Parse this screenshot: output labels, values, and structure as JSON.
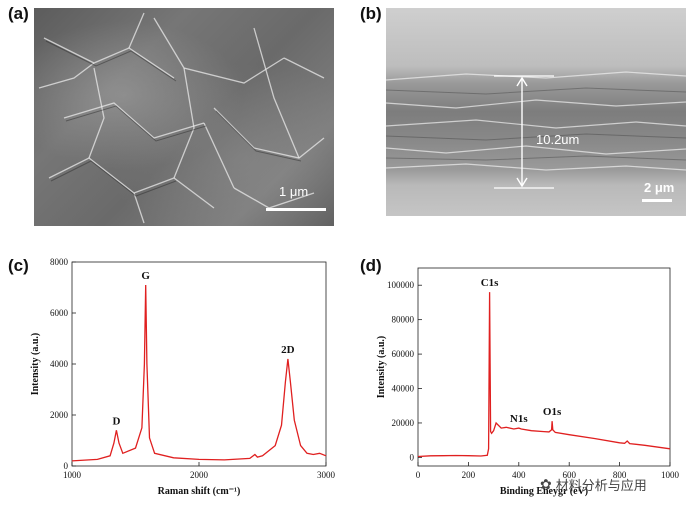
{
  "panels": {
    "a": {
      "label": "(a)",
      "scale_bar": "1 μm"
    },
    "b": {
      "label": "(b)",
      "thickness": "10.2um",
      "scale_bar": "2 μm"
    },
    "c": {
      "label": "(c)"
    },
    "d": {
      "label": "(d)"
    }
  },
  "watermark": "材料分析与应用",
  "colors": {
    "series": "#e02020"
  },
  "chart_data": [
    {
      "type": "line",
      "panel": "c",
      "xlabel": "Raman shift (cm⁻¹)",
      "ylabel": "Intensity (a.u.)",
      "xlim": [
        1000,
        3000
      ],
      "ylim": [
        0,
        8000
      ],
      "xticks": [
        1000,
        2000,
        3000
      ],
      "yticks": [
        0,
        2000,
        4000,
        6000,
        8000
      ],
      "peaks": [
        {
          "label": "D",
          "x": 1350,
          "y": 1400
        },
        {
          "label": "G",
          "x": 1580,
          "y": 7100
        },
        {
          "label": "2D",
          "x": 2700,
          "y": 4200
        }
      ],
      "series": [
        {
          "x": [
            1000,
            1100,
            1200,
            1300,
            1330,
            1350,
            1370,
            1400,
            1500,
            1550,
            1570,
            1580,
            1590,
            1610,
            1650,
            1800,
            2000,
            2200,
            2400,
            2440,
            2460,
            2500,
            2600,
            2650,
            2680,
            2700,
            2720,
            2750,
            2800,
            2850,
            2900,
            2950,
            3000
          ],
          "y": [
            200,
            230,
            260,
            400,
            900,
            1400,
            900,
            500,
            700,
            1500,
            4000,
            7100,
            4000,
            1100,
            500,
            320,
            260,
            240,
            300,
            450,
            350,
            400,
            800,
            1600,
            3300,
            4200,
            3300,
            1800,
            800,
            500,
            450,
            500,
            400
          ]
        }
      ]
    },
    {
      "type": "line",
      "panel": "d",
      "xlabel": "Binding Eneygr (eV)",
      "ylabel": "Intensity (a.u.)",
      "xlim": [
        0,
        1000
      ],
      "ylim": [
        -5000,
        110000
      ],
      "xticks": [
        0,
        200,
        400,
        600,
        800,
        1000
      ],
      "yticks": [
        0,
        20000,
        40000,
        60000,
        80000,
        100000
      ],
      "peaks": [
        {
          "label": "C1s",
          "x": 284,
          "y": 96000
        },
        {
          "label": "N1s",
          "x": 400,
          "y": 17000
        },
        {
          "label": "O1s",
          "x": 532,
          "y": 21000
        }
      ],
      "series": [
        {
          "x": [
            0,
            50,
            100,
            150,
            200,
            250,
            275,
            280,
            284,
            288,
            292,
            300,
            310,
            330,
            350,
            380,
            400,
            410,
            450,
            500,
            520,
            530,
            532,
            535,
            545,
            600,
            700,
            800,
            820,
            830,
            840,
            900,
            1000
          ],
          "y": [
            500,
            900,
            1000,
            1100,
            1000,
            800,
            1200,
            5000,
            96000,
            15000,
            14000,
            15500,
            20000,
            17000,
            17500,
            16500,
            17000,
            16500,
            15500,
            15000,
            14800,
            16000,
            21000,
            16000,
            14500,
            13200,
            11000,
            8500,
            8200,
            9500,
            8000,
            7000,
            5000
          ]
        }
      ]
    }
  ]
}
